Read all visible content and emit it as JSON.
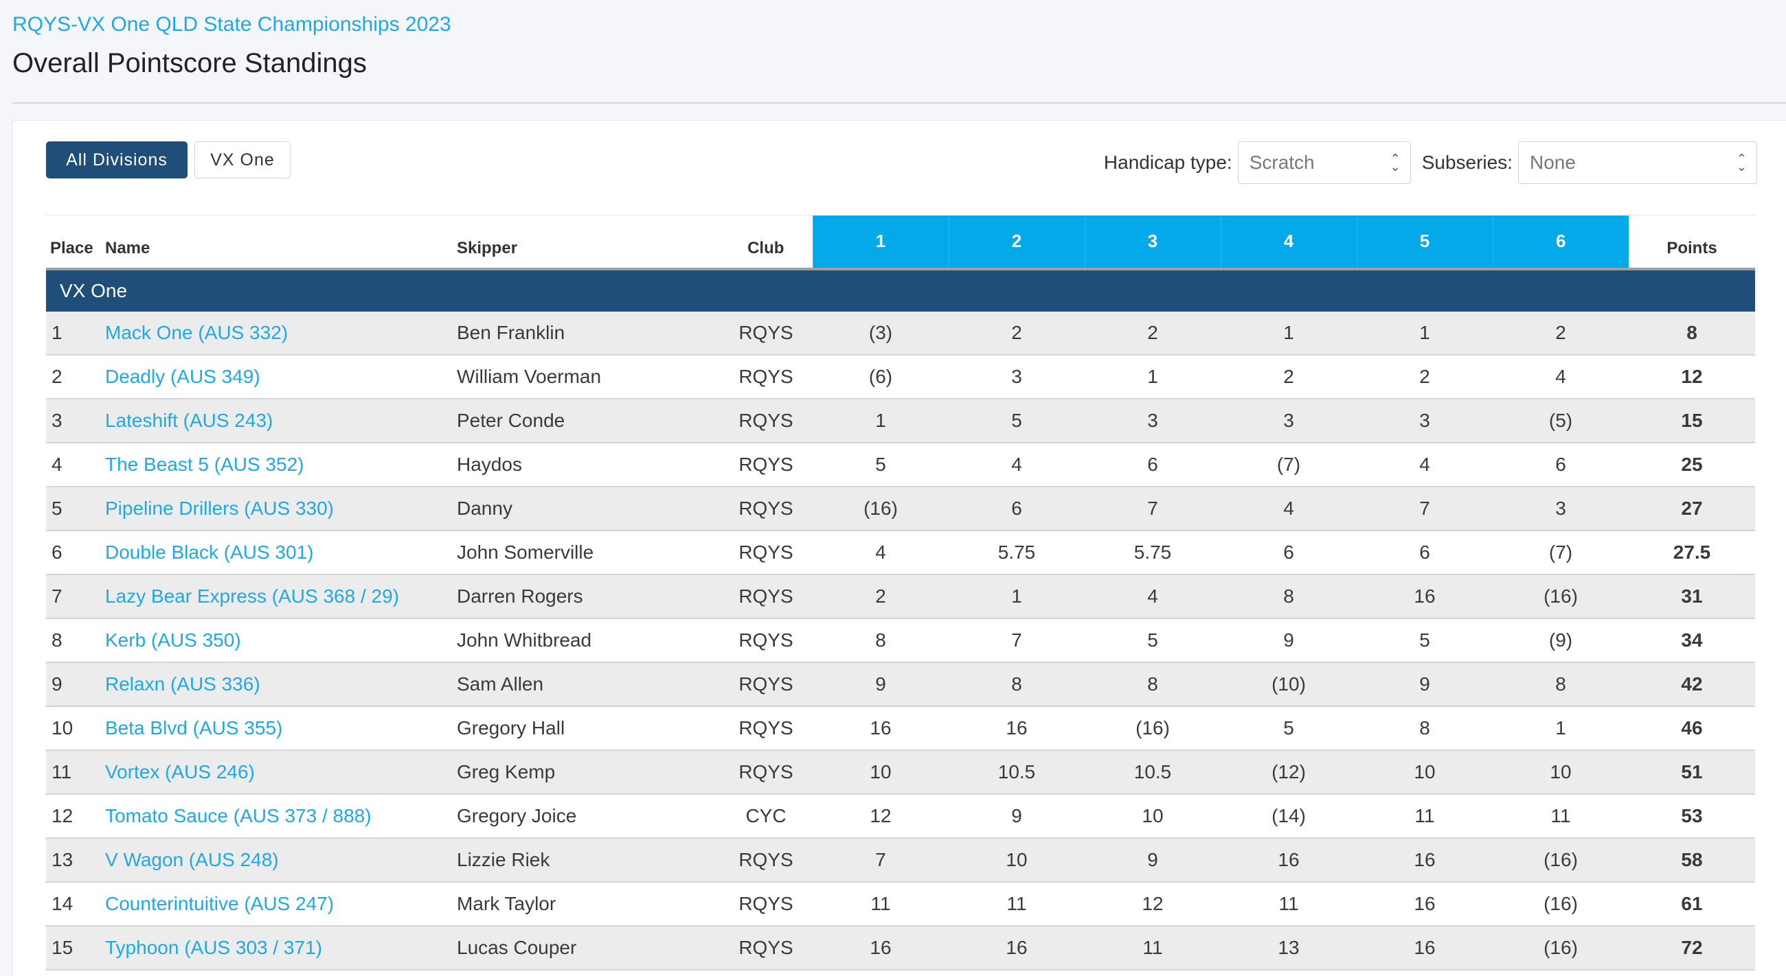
{
  "event_title": "RQYS-VX One QLD State Championships 2023",
  "page_title": "Overall Pointscore Standings",
  "division_buttons": {
    "all": "All Divisions",
    "vx_one": "VX One"
  },
  "filters": {
    "handicap_label": "Handicap type:",
    "handicap_value": "Scratch",
    "subseries_label": "Subseries:",
    "subseries_value": "None"
  },
  "table": {
    "headers": {
      "place": "Place",
      "name": "Name",
      "skipper": "Skipper",
      "club": "Club",
      "races": [
        "1",
        "2",
        "3",
        "4",
        "5",
        "6"
      ],
      "points": "Points"
    },
    "division": "VX One",
    "rows": [
      {
        "place": "1",
        "name": "Mack One (AUS 332)",
        "skipper": "Ben Franklin",
        "club": "RQYS",
        "races": [
          "(3)",
          "2",
          "2",
          "1",
          "1",
          "2"
        ],
        "points": "8"
      },
      {
        "place": "2",
        "name": "Deadly (AUS 349)",
        "skipper": "William Voerman",
        "club": "RQYS",
        "races": [
          "(6)",
          "3",
          "1",
          "2",
          "2",
          "4"
        ],
        "points": "12"
      },
      {
        "place": "3",
        "name": "Lateshift (AUS 243)",
        "skipper": "Peter Conde",
        "club": "RQYS",
        "races": [
          "1",
          "5",
          "3",
          "3",
          "3",
          "(5)"
        ],
        "points": "15"
      },
      {
        "place": "4",
        "name": "The Beast 5 (AUS 352)",
        "skipper": "Haydos",
        "club": "RQYS",
        "races": [
          "5",
          "4",
          "6",
          "(7)",
          "4",
          "6"
        ],
        "points": "25"
      },
      {
        "place": "5",
        "name": "Pipeline Drillers (AUS 330)",
        "skipper": "Danny",
        "club": "RQYS",
        "races": [
          "(16)",
          "6",
          "7",
          "4",
          "7",
          "3"
        ],
        "points": "27"
      },
      {
        "place": "6",
        "name": "Double Black (AUS 301)",
        "skipper": "John Somerville",
        "club": "RQYS",
        "races": [
          "4",
          "5.75",
          "5.75",
          "6",
          "6",
          "(7)"
        ],
        "points": "27.5"
      },
      {
        "place": "7",
        "name": "Lazy Bear Express (AUS 368 / 29)",
        "skipper": "Darren Rogers",
        "club": "RQYS",
        "races": [
          "2",
          "1",
          "4",
          "8",
          "16",
          "(16)"
        ],
        "points": "31"
      },
      {
        "place": "8",
        "name": "Kerb (AUS 350)",
        "skipper": "John Whitbread",
        "club": "RQYS",
        "races": [
          "8",
          "7",
          "5",
          "9",
          "5",
          "(9)"
        ],
        "points": "34"
      },
      {
        "place": "9",
        "name": "Relaxn (AUS 336)",
        "skipper": "Sam Allen",
        "club": "RQYS",
        "races": [
          "9",
          "8",
          "8",
          "(10)",
          "9",
          "8"
        ],
        "points": "42"
      },
      {
        "place": "10",
        "name": "Beta Blvd (AUS 355)",
        "skipper": "Gregory Hall",
        "club": "RQYS",
        "races": [
          "16",
          "16",
          "(16)",
          "5",
          "8",
          "1"
        ],
        "points": "46"
      },
      {
        "place": "11",
        "name": "Vortex (AUS 246)",
        "skipper": "Greg Kemp",
        "club": "RQYS",
        "races": [
          "10",
          "10.5",
          "10.5",
          "(12)",
          "10",
          "10"
        ],
        "points": "51"
      },
      {
        "place": "12",
        "name": "Tomato Sauce (AUS 373 / 888)",
        "skipper": "Gregory Joice",
        "club": "CYC",
        "races": [
          "12",
          "9",
          "10",
          "(14)",
          "11",
          "11"
        ],
        "points": "53"
      },
      {
        "place": "13",
        "name": "V Wagon (AUS 248)",
        "skipper": "Lizzie Riek",
        "club": "RQYS",
        "races": [
          "7",
          "10",
          "9",
          "16",
          "16",
          "(16)"
        ],
        "points": "58"
      },
      {
        "place": "14",
        "name": "Counterintuitive (AUS 247)",
        "skipper": "Mark Taylor",
        "club": "RQYS",
        "races": [
          "11",
          "11",
          "12",
          "11",
          "16",
          "(16)"
        ],
        "points": "61"
      },
      {
        "place": "15",
        "name": "Typhoon (AUS 303 / 371)",
        "skipper": "Lucas Couper",
        "club": "RQYS",
        "races": [
          "16",
          "16",
          "11",
          "13",
          "16",
          "(16)"
        ],
        "points": "72"
      }
    ]
  }
}
